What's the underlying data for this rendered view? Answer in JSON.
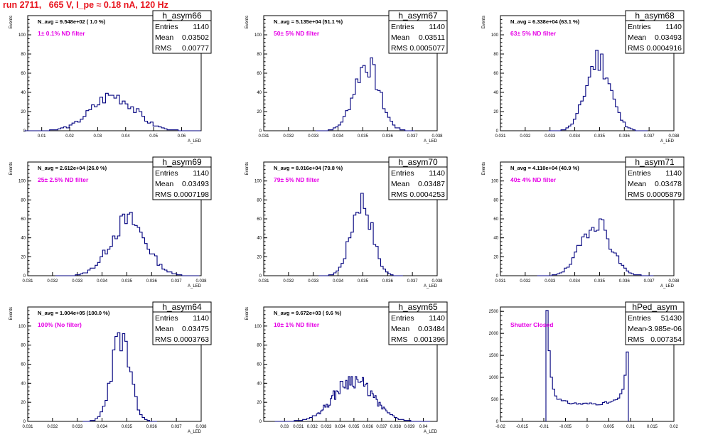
{
  "header": {
    "title": "run 2711,   665 V, I_pe ≈ 0.18 nA, 120 Hz"
  },
  "chart_data": [
    {
      "type": "bar",
      "name": "h_asym66",
      "ylabel": "Events",
      "xlabel": "A_LED",
      "entries": "1140",
      "mean": "0.03502",
      "rms": "0.00777",
      "navg": "N_avg = 9.548e+02 ( 1.0 %)",
      "filter": "1± 0.1% ND filter",
      "xlim": [
        0.005,
        0.067
      ],
      "ylim": [
        0,
        120
      ],
      "xticks": [
        "0.01",
        "0.02",
        "0.03",
        "0.04",
        "0.05",
        "0.06"
      ],
      "xtick_vals": [
        0.01,
        0.02,
        0.03,
        0.04,
        0.05,
        0.06
      ],
      "yticks": [
        0,
        20,
        40,
        60,
        80,
        100
      ],
      "peak": 0.035,
      "sigma": 0.0078,
      "ymax": 37,
      "bin": 0.001,
      "seed": 3
    },
    {
      "type": "bar",
      "name": "h_asym67",
      "ylabel": "Events",
      "xlabel": "A_LED",
      "entries": "1140",
      "mean": "0.03511",
      "rms": "0.0005077",
      "navg": "N_avg = 5.135e+04 (51.1 %)",
      "filter": "50± 5% ND filter",
      "xlim": [
        0.031,
        0.038
      ],
      "ylim": [
        0,
        120
      ],
      "xticks": [
        "0.031",
        "0.032",
        "0.033",
        "0.034",
        "0.035",
        "0.036",
        "0.037",
        "0.038"
      ],
      "xtick_vals": [
        0.031,
        0.032,
        0.033,
        0.034,
        0.035,
        0.036,
        0.037,
        0.038
      ],
      "yticks": [
        0,
        20,
        40,
        60,
        80,
        100
      ],
      "peak": 0.0351,
      "sigma": 0.0005,
      "ymax": 70,
      "bin": 0.0001,
      "seed": 7
    },
    {
      "type": "bar",
      "name": "h_asym68",
      "ylabel": "Events",
      "xlabel": "A_LED",
      "entries": "1140",
      "mean": "0.03493",
      "rms": "0.0004916",
      "navg": "N_avg = 6.338e+04 (63.1 %)",
      "filter": "63± 5% ND filter",
      "xlim": [
        0.031,
        0.038
      ],
      "ylim": [
        0,
        120
      ],
      "xticks": [
        "0.031",
        "0.032",
        "0.033",
        "0.034",
        "0.035",
        "0.036",
        "0.037",
        "0.038"
      ],
      "xtick_vals": [
        0.031,
        0.032,
        0.033,
        0.034,
        0.035,
        0.036,
        0.037,
        0.038
      ],
      "yticks": [
        0,
        20,
        40,
        60,
        80,
        100
      ],
      "peak": 0.0349,
      "sigma": 0.00049,
      "ymax": 75,
      "bin": 0.0001,
      "seed": 11
    },
    {
      "type": "bar",
      "name": "h_asym69",
      "ylabel": "Events",
      "xlabel": "A_LED",
      "entries": "1140",
      "mean": "0.03493",
      "rms": "0.0007198",
      "navg": "N_avg = 2.612e+04 (26.0 %)",
      "filter": "25± 2.5% ND filter",
      "xlim": [
        0.031,
        0.038
      ],
      "ylim": [
        0,
        120
      ],
      "xticks": [
        "0.031",
        "0.032",
        "0.033",
        "0.034",
        "0.035",
        "0.036",
        "0.037",
        "0.038"
      ],
      "xtick_vals": [
        0.031,
        0.032,
        0.033,
        0.034,
        0.035,
        0.036,
        0.037,
        0.038
      ],
      "yticks": [
        0,
        20,
        40,
        60,
        80,
        100
      ],
      "peak": 0.035,
      "sigma": 0.00072,
      "ymax": 58,
      "bin": 0.0001,
      "seed": 13
    },
    {
      "type": "bar",
      "name": "h_asym70",
      "ylabel": "Events",
      "xlabel": "A_LED",
      "entries": "1140",
      "mean": "0.03487",
      "rms": "0.0004253",
      "navg": "N_avg = 8.016e+04 (79.8 %)",
      "filter": "79± 5% ND filter",
      "xlim": [
        0.031,
        0.038
      ],
      "ylim": [
        0,
        120
      ],
      "xticks": [
        "0.031",
        "0.032",
        "0.033",
        "0.034",
        "0.035",
        "0.036",
        "0.037",
        "0.038"
      ],
      "xtick_vals": [
        0.031,
        0.032,
        0.033,
        0.034,
        0.035,
        0.036,
        0.037,
        0.038
      ],
      "yticks": [
        0,
        20,
        40,
        60,
        80,
        100
      ],
      "peak": 0.0349,
      "sigma": 0.00042,
      "ymax": 80,
      "bin": 0.0001,
      "seed": 17
    },
    {
      "type": "bar",
      "name": "h_asym71",
      "ylabel": "Events",
      "xlabel": "A_LED",
      "entries": "1140",
      "mean": "0.03478",
      "rms": "0.0005879",
      "navg": "N_avg = 4.110e+04 (40.9 %)",
      "filter": "40± 4% ND filter",
      "xlim": [
        0.031,
        0.038
      ],
      "ylim": [
        0,
        120
      ],
      "xticks": [
        "0.031",
        "0.032",
        "0.033",
        "0.034",
        "0.035",
        "0.036",
        "0.037",
        "0.038"
      ],
      "xtick_vals": [
        0.031,
        0.032,
        0.033,
        0.034,
        0.035,
        0.036,
        0.037,
        0.038
      ],
      "yticks": [
        0,
        20,
        40,
        60,
        80,
        100
      ],
      "peak": 0.0348,
      "sigma": 0.00058,
      "ymax": 58,
      "bin": 0.0001,
      "seed": 19
    },
    {
      "type": "bar",
      "name": "h_asym64",
      "ylabel": "Events",
      "xlabel": "A_LED",
      "entries": "1140",
      "mean": "0.03475",
      "rms": "0.0003763",
      "navg": "N_avg = 1.004e+05 (100.0 %)",
      "filter": "100% (No filter)",
      "xlim": [
        0.031,
        0.038
      ],
      "ylim": [
        0,
        120
      ],
      "xticks": [
        "0.031",
        "0.032",
        "0.033",
        "0.034",
        "0.035",
        "0.036",
        "0.037",
        "0.038"
      ],
      "xtick_vals": [
        0.031,
        0.032,
        0.033,
        0.034,
        0.035,
        0.036,
        0.037,
        0.038
      ],
      "yticks": [
        0,
        20,
        40,
        60,
        80,
        100
      ],
      "peak": 0.0347,
      "sigma": 0.00037,
      "ymax": 88,
      "bin": 0.0001,
      "seed": 23
    },
    {
      "type": "bar",
      "name": "h_asym65",
      "ylabel": "Events",
      "xlabel": "A_LED",
      "entries": "1140",
      "mean": "0.03484",
      "rms": "0.001396",
      "navg": "N_avg = 9.672e+03 ( 9.6 %)",
      "filter": "10± 1% ND filter",
      "xlim": [
        0.0285,
        0.041
      ],
      "ylim": [
        0,
        120
      ],
      "xticks": [
        "0.03",
        "0.031",
        "0.032",
        "0.033",
        "0.034",
        "0.035",
        "0.036",
        "0.037",
        "0.038",
        "0.039",
        "0.04"
      ],
      "xtick_vals": [
        0.03,
        0.031,
        0.032,
        0.033,
        0.034,
        0.035,
        0.036,
        0.037,
        0.038,
        0.039,
        0.04
      ],
      "yticks": [
        0,
        20,
        40,
        60,
        80,
        100
      ],
      "peak": 0.0349,
      "sigma": 0.0014,
      "ymax": 44,
      "bin": 0.0001,
      "seed": 29
    },
    {
      "type": "bar",
      "name": "hPed_asym",
      "ylabel": "",
      "xlabel": "",
      "entries": "51430",
      "mean": "-3.985e-06",
      "rms": "0.007354",
      "navg": "",
      "filter": "Shutter Closed",
      "xlim": [
        -0.02,
        0.02
      ],
      "ylim": [
        0,
        2600
      ],
      "xticks": [
        "-0.02",
        "-0.015",
        "-0.01",
        "-0.005",
        "0",
        "0.005",
        "0.01",
        "0.015",
        "0.02"
      ],
      "xtick_vals": [
        -0.02,
        -0.015,
        -0.01,
        -0.005,
        0,
        0.005,
        0.01,
        0.015,
        0.02
      ],
      "yticks": [
        0,
        500,
        1000,
        1500,
        2000,
        2500
      ],
      "peak": 0,
      "sigma": 0,
      "ymax": 2500,
      "bin": 0.0005,
      "seed": 31,
      "ped": true
    }
  ]
}
